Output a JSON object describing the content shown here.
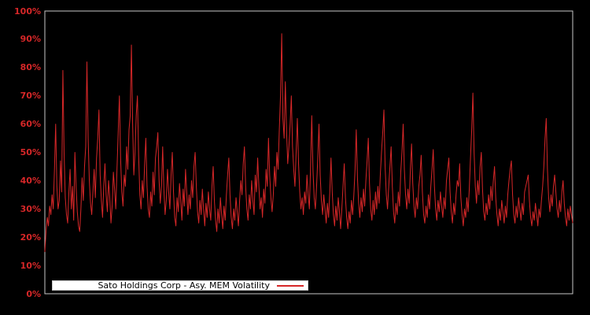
{
  "chart_data": {
    "type": "line",
    "title": "",
    "legend_label": "Sato Holdings Corp - Asy. MEM Volatility",
    "legend_position": "lower-left",
    "series_name": "Asy. MEM Volatility",
    "line_color": "#d62728",
    "background_color": "#000000",
    "axis_border_color": "#c8c8c8",
    "tick_label_color": "#d62728",
    "grid": false,
    "unit": "percent",
    "ylim": [
      0,
      100
    ],
    "ytick_values": [
      0,
      10,
      20,
      30,
      40,
      50,
      60,
      70,
      80,
      90,
      100
    ],
    "ytick_labels": [
      "0%",
      "10%",
      "20%",
      "30%",
      "40%",
      "50%",
      "60%",
      "70%",
      "80%",
      "90%",
      "100%"
    ],
    "xtick_labels": [],
    "values": [
      14.8,
      22,
      27,
      24,
      31,
      28,
      35,
      30,
      44,
      60,
      38,
      30,
      33,
      47,
      36,
      79,
      50,
      34,
      28,
      25,
      36,
      44,
      30,
      38,
      26,
      50,
      38,
      29,
      24,
      22,
      30,
      41,
      33,
      45,
      52,
      82,
      55,
      40,
      32,
      28,
      36,
      44,
      34,
      48,
      55,
      65,
      42,
      33,
      27,
      38,
      46,
      35,
      29,
      40,
      34,
      25,
      31,
      43,
      37,
      30,
      44,
      57,
      70,
      48,
      36,
      31,
      42,
      38,
      52,
      44,
      58,
      63,
      88,
      60,
      42,
      50,
      63,
      70,
      49,
      35,
      30,
      40,
      34,
      46,
      55,
      38,
      30,
      27,
      36,
      31,
      43,
      35,
      48,
      52,
      57,
      40,
      32,
      38,
      52,
      37,
      28,
      33,
      44,
      36,
      30,
      42,
      50,
      36,
      27,
      24,
      34,
      29,
      39,
      33,
      26,
      37,
      31,
      44,
      36,
      28,
      35,
      30,
      40,
      34,
      45,
      50,
      38,
      29,
      25,
      33,
      28,
      37,
      30,
      24,
      32,
      27,
      36,
      30,
      26,
      38,
      45,
      33,
      26,
      22,
      30,
      25,
      34,
      28,
      23,
      31,
      26,
      35,
      42,
      48,
      35,
      27,
      23,
      30,
      26,
      34,
      29,
      24,
      33,
      40,
      35,
      46,
      52,
      38,
      30,
      26,
      35,
      30,
      40,
      33,
      28,
      42,
      36,
      48,
      38,
      30,
      34,
      27,
      37,
      32,
      44,
      38,
      55,
      42,
      34,
      29,
      35,
      45,
      38,
      50,
      44,
      58,
      70,
      92,
      62,
      55,
      75,
      58,
      46,
      52,
      60,
      70,
      52,
      44,
      38,
      50,
      62,
      46,
      36,
      30,
      34,
      28,
      36,
      32,
      42,
      35,
      30,
      45,
      63,
      44,
      34,
      30,
      38,
      48,
      60,
      42,
      33,
      28,
      35,
      30,
      25,
      32,
      27,
      36,
      48,
      36,
      28,
      24,
      31,
      26,
      34,
      29,
      23,
      30,
      38,
      46,
      34,
      27,
      23,
      29,
      25,
      33,
      28,
      35,
      44,
      58,
      41,
      32,
      27,
      34,
      29,
      37,
      31,
      40,
      47,
      55,
      39,
      30,
      26,
      33,
      28,
      36,
      30,
      38,
      32,
      42,
      50,
      57,
      65,
      45,
      35,
      30,
      38,
      45,
      52,
      38,
      29,
      25,
      32,
      28,
      36,
      31,
      43,
      50,
      60,
      44,
      35,
      30,
      37,
      32,
      44,
      53,
      39,
      31,
      27,
      34,
      30,
      38,
      42,
      49,
      36,
      28,
      25,
      31,
      27,
      35,
      30,
      38,
      44,
      51,
      38,
      30,
      26,
      33,
      29,
      36,
      31,
      27,
      34,
      30,
      40,
      44,
      48,
      36,
      29,
      25,
      32,
      28,
      35,
      40,
      38,
      46,
      34,
      28,
      24,
      30,
      27,
      34,
      29,
      37,
      48,
      58,
      71,
      50,
      38,
      32,
      40,
      35,
      45,
      50,
      37,
      29,
      26,
      32,
      28,
      35,
      30,
      38,
      33,
      40,
      45,
      34,
      28,
      24,
      30,
      26,
      33,
      29,
      25,
      31,
      27,
      35,
      40,
      44,
      47,
      35,
      28,
      25,
      31,
      27,
      34,
      30,
      26,
      32,
      28,
      36,
      38,
      40,
      42,
      33,
      27,
      24,
      29,
      26,
      32,
      28,
      24,
      30,
      27,
      33,
      38,
      45,
      55,
      62,
      44,
      34,
      29,
      35,
      31,
      38,
      42,
      36,
      30,
      27,
      33,
      29,
      36,
      40,
      32,
      27,
      24,
      30,
      26,
      31,
      28,
      25
    ]
  }
}
